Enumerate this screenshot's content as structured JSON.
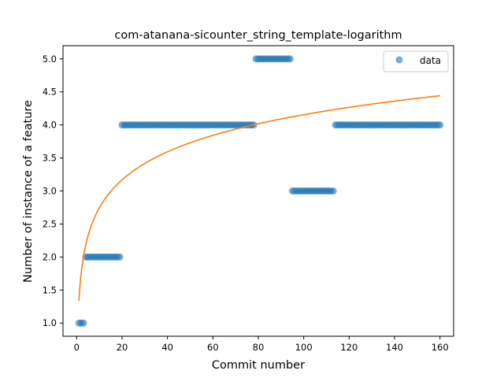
{
  "chart_data": {
    "type": "scatter",
    "title": "com-atanana-sicounter_string_template-logarithm",
    "xlabel": "Commit number",
    "ylabel": "Number of instance of a feature",
    "xlim": [
      -6,
      166
    ],
    "ylim": [
      0.8,
      5.2
    ],
    "xticks": [
      0,
      20,
      40,
      60,
      80,
      100,
      120,
      140,
      160
    ],
    "xtick_labels": [
      "0",
      "20",
      "40",
      "60",
      "80",
      "100",
      "120",
      "140",
      "160"
    ],
    "yticks": [
      1.0,
      1.5,
      2.0,
      2.5,
      3.0,
      3.5,
      4.0,
      4.5,
      5.0
    ],
    "ytick_labels": [
      "1.0",
      "1.5",
      "2.0",
      "2.5",
      "3.0",
      "3.5",
      "4.0",
      "4.5",
      "5.0"
    ],
    "grid": false,
    "legend": {
      "position": "top-right",
      "entries": [
        "data"
      ]
    },
    "series": [
      {
        "name": "data",
        "kind": "scatter",
        "color": "#1f77b4",
        "segments": [
          {
            "x_from": 1,
            "x_to": 3,
            "y": 1
          },
          {
            "x_from": 4,
            "x_to": 19,
            "y": 2
          },
          {
            "x_from": 20,
            "x_to": 78,
            "y": 4
          },
          {
            "x_from": 79,
            "x_to": 94,
            "y": 5
          },
          {
            "x_from": 95,
            "x_to": 113,
            "y": 3
          },
          {
            "x_from": 114,
            "x_to": 160,
            "y": 4
          }
        ]
      },
      {
        "kind": "line",
        "color": "#ff7f0e",
        "fit": {
          "model": "logarithmic",
          "a": 0.6125,
          "b": 1.3338,
          "x_from": 1,
          "x_to": 160
        }
      }
    ]
  }
}
